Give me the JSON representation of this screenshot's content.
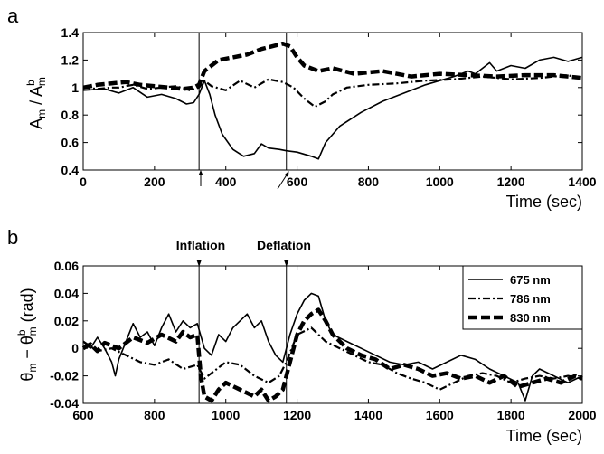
{
  "chart_data": [
    {
      "panel_label": "a",
      "type": "line",
      "xlabel": "Time (sec)",
      "ylabel_text": "A",
      "ylabel_sub": "m",
      "ylabel_mid": " / A",
      "ylabel_sup": "b",
      "ylabel_sub2": "m",
      "xlim": [
        0,
        1400
      ],
      "ylim": [
        0.4,
        1.4
      ],
      "xticks": [
        0,
        200,
        400,
        600,
        800,
        1000,
        1200,
        1400
      ],
      "yticks": [
        "0.4",
        "0.6",
        "0.8",
        "1",
        "1.2",
        "1.4"
      ],
      "ytick_values": [
        0.4,
        0.6,
        0.8,
        1.0,
        1.2,
        1.4
      ],
      "event_lines": [
        325,
        570
      ],
      "series": [
        {
          "name": "675 nm",
          "style": "solid",
          "x": [
            0,
            60,
            100,
            140,
            180,
            220,
            260,
            290,
            310,
            325,
            340,
            355,
            370,
            390,
            420,
            450,
            480,
            500,
            520,
            550,
            570,
            600,
            640,
            660,
            680,
            720,
            780,
            840,
            900,
            960,
            1000,
            1040,
            1080,
            1100,
            1140,
            1160,
            1200,
            1240,
            1280,
            1320,
            1360,
            1400
          ],
          "y": [
            0.98,
            0.99,
            0.96,
            1.0,
            0.93,
            0.95,
            0.92,
            0.88,
            0.89,
            0.95,
            1.05,
            0.95,
            0.8,
            0.66,
            0.55,
            0.5,
            0.52,
            0.59,
            0.56,
            0.55,
            0.54,
            0.53,
            0.5,
            0.48,
            0.6,
            0.72,
            0.82,
            0.9,
            0.96,
            1.02,
            1.05,
            1.08,
            1.12,
            1.1,
            1.18,
            1.12,
            1.16,
            1.14,
            1.2,
            1.22,
            1.19,
            1.22
          ]
        },
        {
          "name": "786 nm",
          "style": "dashdot",
          "x": [
            0,
            40,
            80,
            100,
            140,
            180,
            220,
            260,
            300,
            325,
            340,
            360,
            400,
            440,
            480,
            520,
            560,
            590,
            620,
            650,
            680,
            700,
            740,
            800,
            880,
            960,
            1040,
            1120,
            1200,
            1280,
            1360,
            1400
          ],
          "y": [
            1.0,
            0.99,
            1.0,
            1.0,
            1.02,
            0.99,
            1.0,
            1.01,
            0.98,
            1.0,
            1.05,
            1.01,
            0.98,
            1.05,
            1.0,
            1.06,
            1.04,
            1.0,
            0.92,
            0.86,
            0.9,
            0.95,
            1.0,
            1.02,
            1.03,
            1.05,
            1.06,
            1.08,
            1.06,
            1.07,
            1.09,
            1.06
          ]
        },
        {
          "name": "830 nm",
          "style": "dashed",
          "x": [
            0,
            40,
            80,
            120,
            160,
            200,
            240,
            280,
            310,
            325,
            340,
            380,
            420,
            460,
            500,
            530,
            560,
            580,
            600,
            620,
            660,
            700,
            760,
            840,
            920,
            1000,
            1080,
            1160,
            1240,
            1320,
            1400
          ],
          "y": [
            1.0,
            1.02,
            1.03,
            1.04,
            1.02,
            1.01,
            1.0,
            0.99,
            1.0,
            1.02,
            1.12,
            1.2,
            1.22,
            1.24,
            1.28,
            1.3,
            1.32,
            1.3,
            1.22,
            1.16,
            1.12,
            1.14,
            1.1,
            1.12,
            1.08,
            1.1,
            1.09,
            1.08,
            1.09,
            1.09,
            1.07
          ]
        }
      ]
    },
    {
      "panel_label": "b",
      "type": "line",
      "xlabel": "Time (sec)",
      "ylabel_text": "θ",
      "ylabel_sub": "m",
      "ylabel_mid": " − θ",
      "ylabel_sup": "b",
      "ylabel_sub2": "m",
      "ylabel_unit": " (rad)",
      "xlim": [
        600,
        2000
      ],
      "ylim": [
        -0.04,
        0.06
      ],
      "xticks": [
        600,
        800,
        1000,
        1200,
        1400,
        1600,
        1800,
        2000
      ],
      "yticks": [
        "-0.04",
        "-0.02",
        "0",
        "0.02",
        "0.04",
        "0.06"
      ],
      "ytick_values": [
        -0.04,
        -0.02,
        0,
        0.02,
        0.04,
        0.06
      ],
      "event_lines": [
        925,
        1170
      ],
      "event_labels": [
        "Inflation",
        "Deflation"
      ],
      "legend_position": "top-right",
      "series": [
        {
          "name": "675 nm",
          "style": "solid",
          "x": [
            600,
            620,
            640,
            660,
            680,
            690,
            700,
            720,
            740,
            760,
            780,
            800,
            820,
            840,
            860,
            880,
            900,
            920,
            940,
            960,
            980,
            1000,
            1020,
            1040,
            1060,
            1080,
            1100,
            1120,
            1140,
            1160,
            1180,
            1200,
            1220,
            1240,
            1260,
            1280,
            1300,
            1340,
            1380,
            1420,
            1460,
            1500,
            1540,
            1580,
            1620,
            1660,
            1700,
            1740,
            1780,
            1820,
            1840,
            1860,
            1880,
            1920,
            1960,
            2000
          ],
          "y": [
            0.005,
            0.0,
            0.008,
            0.0,
            -0.01,
            -0.02,
            -0.008,
            0.005,
            0.018,
            0.008,
            0.012,
            0.002,
            0.015,
            0.025,
            0.012,
            0.02,
            0.015,
            0.018,
            0.0,
            -0.005,
            0.01,
            0.005,
            0.015,
            0.02,
            0.025,
            0.015,
            0.02,
            0.005,
            -0.005,
            -0.01,
            0.01,
            0.025,
            0.035,
            0.04,
            0.038,
            0.02,
            0.01,
            0.005,
            0.0,
            -0.005,
            -0.01,
            -0.012,
            -0.01,
            -0.015,
            -0.01,
            -0.005,
            -0.008,
            -0.015,
            -0.02,
            -0.025,
            -0.038,
            -0.02,
            -0.015,
            -0.02,
            -0.025,
            -0.02
          ]
        },
        {
          "name": "786 nm",
          "style": "dashdot",
          "x": [
            600,
            640,
            680,
            720,
            760,
            800,
            840,
            880,
            920,
            940,
            960,
            1000,
            1040,
            1080,
            1120,
            1150,
            1170,
            1200,
            1240,
            1280,
            1320,
            1360,
            1400,
            1440,
            1480,
            1520,
            1560,
            1600,
            1640,
            1680,
            1720,
            1760,
            1800,
            1840,
            1880,
            1920,
            1960,
            2000
          ],
          "y": [
            0.005,
            -0.002,
            0.0,
            -0.005,
            -0.01,
            -0.012,
            -0.008,
            -0.015,
            -0.012,
            -0.022,
            -0.018,
            -0.01,
            -0.012,
            -0.02,
            -0.025,
            -0.02,
            -0.01,
            0.01,
            0.015,
            0.005,
            0.0,
            -0.005,
            -0.01,
            -0.012,
            -0.018,
            -0.022,
            -0.025,
            -0.03,
            -0.025,
            -0.02,
            -0.018,
            -0.02,
            -0.025,
            -0.022,
            -0.02,
            -0.022,
            -0.02,
            -0.022
          ]
        },
        {
          "name": "830 nm",
          "style": "dashed",
          "x": [
            600,
            620,
            640,
            660,
            700,
            740,
            780,
            820,
            860,
            880,
            900,
            920,
            930,
            940,
            960,
            980,
            1000,
            1040,
            1080,
            1100,
            1120,
            1140,
            1160,
            1180,
            1200,
            1220,
            1240,
            1260,
            1280,
            1300,
            1340,
            1380,
            1420,
            1460,
            1500,
            1540,
            1580,
            1620,
            1660,
            1700,
            1740,
            1780,
            1820,
            1860,
            1900,
            1940,
            1980,
            2000
          ],
          "y": [
            0.0,
            0.003,
            -0.002,
            0.004,
            0.0,
            0.008,
            0.004,
            0.01,
            0.005,
            0.012,
            0.008,
            0.01,
            -0.02,
            -0.035,
            -0.038,
            -0.03,
            -0.025,
            -0.03,
            -0.035,
            -0.03,
            -0.038,
            -0.035,
            -0.03,
            -0.01,
            0.01,
            0.02,
            0.025,
            0.028,
            0.02,
            0.01,
            0.0,
            -0.005,
            -0.008,
            -0.015,
            -0.012,
            -0.015,
            -0.02,
            -0.018,
            -0.022,
            -0.02,
            -0.025,
            -0.02,
            -0.028,
            -0.025,
            -0.022,
            -0.025,
            -0.02,
            -0.022
          ]
        }
      ]
    }
  ]
}
